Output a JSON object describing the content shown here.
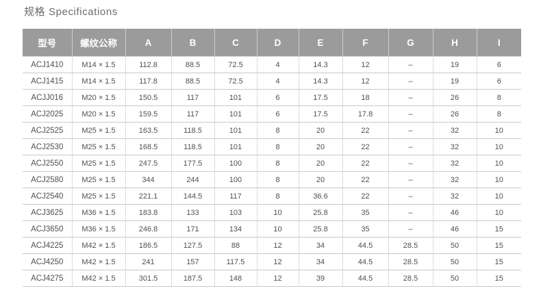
{
  "page_title": "规格 Specifications",
  "table": {
    "columns": [
      "型号",
      "螺纹公称",
      "A",
      "B",
      "C",
      "D",
      "E",
      "F",
      "G",
      "H",
      "I"
    ],
    "rows": [
      [
        "ACJ1410",
        "M14 × 1.5",
        "112.8",
        "88.5",
        "72.5",
        "4",
        "14.3",
        "12",
        "–",
        "19",
        "6"
      ],
      [
        "ACJ1415",
        "M14 × 1.5",
        "117.8",
        "88.5",
        "72.5",
        "4",
        "14.3",
        "12",
        "–",
        "19",
        "6"
      ],
      [
        "ACJJ016",
        "M20 × 1.5",
        "150.5",
        "117",
        "101",
        "6",
        "17.5",
        "18",
        "–",
        "26",
        "8"
      ],
      [
        "ACJ2025",
        "M20 × 1.5",
        "159.5",
        "117",
        "101",
        "6",
        "17.5",
        "17.8",
        "–",
        "26",
        "8"
      ],
      [
        "ACJ2525",
        "M25 × 1.5",
        "163.5",
        "118.5",
        "101",
        "8",
        "20",
        "22",
        "–",
        "32",
        "10"
      ],
      [
        "ACJ2530",
        "M25 × 1.5",
        "168.5",
        "118.5",
        "101",
        "8",
        "20",
        "22",
        "–",
        "32",
        "10"
      ],
      [
        "ACJ2550",
        "M25 × 1.5",
        "247.5",
        "177.5",
        "100",
        "8",
        "20",
        "22",
        "–",
        "32",
        "10"
      ],
      [
        "ACJ2580",
        "M25 × 1.5",
        "344",
        "244",
        "100",
        "8",
        "20",
        "22",
        "–",
        "32",
        "10"
      ],
      [
        "ACJ2540",
        "M25 × 1.5",
        "221.1",
        "144.5",
        "117",
        "8",
        "36.6",
        "22",
        "–",
        "32",
        "10"
      ],
      [
        "ACJ3625",
        "M36 × 1.5",
        "183.8",
        "133",
        "103",
        "10",
        "25.8",
        "35",
        "–",
        "46",
        "10"
      ],
      [
        "ACJ3650",
        "M36 × 1.5",
        "246.8",
        "171",
        "134",
        "10",
        "25.8",
        "35",
        "–",
        "46",
        "15"
      ],
      [
        "ACJ4225",
        "M42 × 1.5",
        "186.5",
        "127.5",
        "88",
        "12",
        "34",
        "44.5",
        "28.5",
        "50",
        "15"
      ],
      [
        "ACJ4250",
        "M42 × 1.5",
        "241",
        "157",
        "117.5",
        "12",
        "34",
        "44.5",
        "28.5",
        "50",
        "15"
      ],
      [
        "ACJ4275",
        "M42 × 1.5",
        "301.5",
        "187.5",
        "148",
        "12",
        "39",
        "44.5",
        "28.5",
        "50",
        "15"
      ]
    ],
    "column_keys": [
      "model",
      "thread",
      "a",
      "b",
      "c",
      "d",
      "e",
      "f",
      "g",
      "h",
      "i"
    ]
  },
  "colors": {
    "header_bg": "#9b9b9b",
    "header_text": "#ffffff",
    "body_text": "#4f4f4f",
    "row_line": "#c9c9c9",
    "column_line": "#dcdcdc",
    "title_text": "#6b6b6b"
  }
}
